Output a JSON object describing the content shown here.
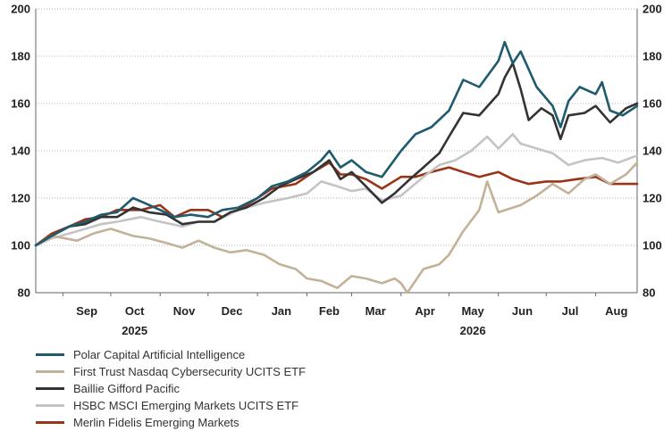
{
  "chart_data": {
    "type": "line",
    "title": "",
    "xlabel": "",
    "ylabel": "",
    "ylim": [
      80,
      200
    ],
    "yticks": [
      80,
      100,
      120,
      140,
      160,
      180,
      200
    ],
    "y_axes": "both sides",
    "grid": "horizontal dotted",
    "legend_placement": "bottom-left",
    "x_range": [
      "2025-08-15",
      "2026-08-27"
    ],
    "x_ticks": [
      {
        "date": "2025-09-01",
        "label": "Sep"
      },
      {
        "date": "2025-10-01",
        "label": "Oct"
      },
      {
        "date": "2025-11-01",
        "label": "Nov"
      },
      {
        "date": "2025-12-01",
        "label": "Dec"
      },
      {
        "date": "2026-01-01",
        "label": "Jan"
      },
      {
        "date": "2026-02-01",
        "label": "Feb"
      },
      {
        "date": "2026-03-01",
        "label": "Mar"
      },
      {
        "date": "2026-04-01",
        "label": "Apr"
      },
      {
        "date": "2026-05-01",
        "label": "May"
      },
      {
        "date": "2026-06-01",
        "label": "Jun"
      },
      {
        "date": "2026-07-01",
        "label": "Jul"
      },
      {
        "date": "2026-08-01",
        "label": "Aug"
      }
    ],
    "year_labels": [
      {
        "date": "2025-10-01",
        "label": "2025"
      },
      {
        "date": "2026-05-01",
        "label": "2026"
      }
    ],
    "series": [
      {
        "name": "Polar Capital Artificial Intelligence",
        "color": "#1e5b6e",
        "points": [
          [
            "2025-08-15",
            100
          ],
          [
            "2025-08-25",
            104
          ],
          [
            "2025-09-05",
            108
          ],
          [
            "2025-09-15",
            110
          ],
          [
            "2025-09-25",
            113
          ],
          [
            "2025-10-05",
            114
          ],
          [
            "2025-10-15",
            120
          ],
          [
            "2025-10-22",
            118
          ],
          [
            "2025-11-01",
            115
          ],
          [
            "2025-11-10",
            112
          ],
          [
            "2025-11-20",
            113
          ],
          [
            "2025-12-01",
            112
          ],
          [
            "2025-12-10",
            115
          ],
          [
            "2025-12-20",
            116
          ],
          [
            "2026-01-01",
            120
          ],
          [
            "2026-01-10",
            125
          ],
          [
            "2026-01-20",
            127
          ],
          [
            "2026-02-01",
            131
          ],
          [
            "2026-02-10",
            136
          ],
          [
            "2026-02-15",
            140
          ],
          [
            "2026-02-22",
            133
          ],
          [
            "2026-03-01",
            136
          ],
          [
            "2026-03-10",
            131
          ],
          [
            "2026-03-20",
            129
          ],
          [
            "2026-04-01",
            140
          ],
          [
            "2026-04-10",
            147
          ],
          [
            "2026-04-20",
            150
          ],
          [
            "2026-05-01",
            157
          ],
          [
            "2026-05-10",
            170
          ],
          [
            "2026-05-20",
            167
          ],
          [
            "2026-06-01",
            178
          ],
          [
            "2026-06-05",
            186
          ],
          [
            "2026-06-10",
            177
          ],
          [
            "2026-06-15",
            182
          ],
          [
            "2026-06-25",
            167
          ],
          [
            "2026-07-05",
            159
          ],
          [
            "2026-07-10",
            150
          ],
          [
            "2026-07-15",
            161
          ],
          [
            "2026-07-22",
            167
          ],
          [
            "2026-08-01",
            164
          ],
          [
            "2026-08-05",
            169
          ],
          [
            "2026-08-10",
            157
          ],
          [
            "2026-08-18",
            155
          ],
          [
            "2026-08-27",
            159
          ]
        ]
      },
      {
        "name": "First Trust Nasdaq Cybersecurity UCITS ETF",
        "color": "#c2b298",
        "points": [
          [
            "2025-08-15",
            100
          ],
          [
            "2025-08-25",
            104
          ],
          [
            "2025-09-10",
            102
          ],
          [
            "2025-09-20",
            105
          ],
          [
            "2025-10-01",
            107
          ],
          [
            "2025-10-15",
            104
          ],
          [
            "2025-10-25",
            103
          ],
          [
            "2025-11-05",
            101
          ],
          [
            "2025-11-15",
            99
          ],
          [
            "2025-11-25",
            102
          ],
          [
            "2025-12-05",
            99
          ],
          [
            "2025-12-15",
            97
          ],
          [
            "2025-12-25",
            98
          ],
          [
            "2026-01-05",
            96
          ],
          [
            "2026-01-15",
            92
          ],
          [
            "2026-01-25",
            90
          ],
          [
            "2026-02-01",
            86
          ],
          [
            "2026-02-10",
            85
          ],
          [
            "2026-02-20",
            82
          ],
          [
            "2026-03-01",
            87
          ],
          [
            "2026-03-10",
            86
          ],
          [
            "2026-03-20",
            84
          ],
          [
            "2026-03-28",
            86
          ],
          [
            "2026-04-01",
            84
          ],
          [
            "2026-04-05",
            80
          ],
          [
            "2026-04-15",
            90
          ],
          [
            "2026-04-25",
            92
          ],
          [
            "2026-05-01",
            96
          ],
          [
            "2026-05-10",
            106
          ],
          [
            "2026-05-20",
            115
          ],
          [
            "2026-05-25",
            127
          ],
          [
            "2026-06-01",
            114
          ],
          [
            "2026-06-15",
            117
          ],
          [
            "2026-06-25",
            121
          ],
          [
            "2026-07-05",
            126
          ],
          [
            "2026-07-15",
            122
          ],
          [
            "2026-07-25",
            128
          ],
          [
            "2026-08-01",
            130
          ],
          [
            "2026-08-10",
            126
          ],
          [
            "2026-08-20",
            130
          ],
          [
            "2026-08-27",
            135
          ]
        ]
      },
      {
        "name": "Baillie Gifford Pacific",
        "color": "#333333",
        "points": [
          [
            "2025-08-15",
            100
          ],
          [
            "2025-08-25",
            104
          ],
          [
            "2025-09-05",
            108
          ],
          [
            "2025-09-15",
            109
          ],
          [
            "2025-09-25",
            112
          ],
          [
            "2025-10-05",
            112
          ],
          [
            "2025-10-15",
            116
          ],
          [
            "2025-10-25",
            114
          ],
          [
            "2025-11-05",
            113
          ],
          [
            "2025-11-15",
            109
          ],
          [
            "2025-11-25",
            110
          ],
          [
            "2025-12-05",
            110
          ],
          [
            "2025-12-15",
            114
          ],
          [
            "2025-12-25",
            116
          ],
          [
            "2026-01-05",
            120
          ],
          [
            "2026-01-15",
            125
          ],
          [
            "2026-01-25",
            128
          ],
          [
            "2026-02-05",
            131
          ],
          [
            "2026-02-15",
            136
          ],
          [
            "2026-02-22",
            128
          ],
          [
            "2026-03-01",
            131
          ],
          [
            "2026-03-10",
            125
          ],
          [
            "2026-03-20",
            118
          ],
          [
            "2026-03-28",
            122
          ],
          [
            "2026-04-05",
            127
          ],
          [
            "2026-04-15",
            133
          ],
          [
            "2026-04-25",
            139
          ],
          [
            "2026-05-01",
            146
          ],
          [
            "2026-05-10",
            156
          ],
          [
            "2026-05-20",
            155
          ],
          [
            "2026-06-01",
            164
          ],
          [
            "2026-06-05",
            171
          ],
          [
            "2026-06-10",
            177
          ],
          [
            "2026-06-15",
            166
          ],
          [
            "2026-06-20",
            153
          ],
          [
            "2026-06-28",
            158
          ],
          [
            "2026-07-05",
            155
          ],
          [
            "2026-07-10",
            145
          ],
          [
            "2026-07-15",
            155
          ],
          [
            "2026-07-25",
            156
          ],
          [
            "2026-08-01",
            159
          ],
          [
            "2026-08-10",
            152
          ],
          [
            "2026-08-20",
            158
          ],
          [
            "2026-08-27",
            160
          ]
        ]
      },
      {
        "name": "HSBC MSCI Emerging Markets UCITS ETF",
        "color": "#c4c4c4",
        "points": [
          [
            "2025-08-15",
            100
          ],
          [
            "2025-08-25",
            103
          ],
          [
            "2025-09-10",
            106
          ],
          [
            "2025-09-25",
            109
          ],
          [
            "2025-10-05",
            110
          ],
          [
            "2025-10-20",
            112
          ],
          [
            "2025-11-01",
            110
          ],
          [
            "2025-11-15",
            108
          ],
          [
            "2025-11-25",
            110
          ],
          [
            "2025-12-05",
            110
          ],
          [
            "2025-12-20",
            115
          ],
          [
            "2026-01-05",
            118
          ],
          [
            "2026-01-20",
            120
          ],
          [
            "2026-02-01",
            122
          ],
          [
            "2026-02-10",
            127
          ],
          [
            "2026-02-20",
            125
          ],
          [
            "2026-03-01",
            123
          ],
          [
            "2026-03-10",
            124
          ],
          [
            "2026-03-20",
            119
          ],
          [
            "2026-04-01",
            121
          ],
          [
            "2026-04-15",
            129
          ],
          [
            "2026-04-25",
            134
          ],
          [
            "2026-05-05",
            136
          ],
          [
            "2026-05-15",
            140
          ],
          [
            "2026-05-25",
            146
          ],
          [
            "2026-06-01",
            141
          ],
          [
            "2026-06-10",
            147
          ],
          [
            "2026-06-15",
            143
          ],
          [
            "2026-06-25",
            141
          ],
          [
            "2026-07-05",
            139
          ],
          [
            "2026-07-15",
            134
          ],
          [
            "2026-07-25",
            136
          ],
          [
            "2026-08-05",
            137
          ],
          [
            "2026-08-15",
            135
          ],
          [
            "2026-08-27",
            138
          ]
        ]
      },
      {
        "name": "Merlin Fidelis Emerging Markets",
        "color": "#9a3418",
        "points": [
          [
            "2025-08-15",
            100
          ],
          [
            "2025-08-25",
            105
          ],
          [
            "2025-09-05",
            108
          ],
          [
            "2025-09-15",
            111
          ],
          [
            "2025-09-25",
            112
          ],
          [
            "2025-10-05",
            115
          ],
          [
            "2025-10-20",
            115
          ],
          [
            "2025-11-01",
            117
          ],
          [
            "2025-11-10",
            112
          ],
          [
            "2025-11-20",
            115
          ],
          [
            "2025-12-01",
            115
          ],
          [
            "2025-12-10",
            112
          ],
          [
            "2025-12-20",
            115
          ],
          [
            "2026-01-01",
            120
          ],
          [
            "2026-01-10",
            124
          ],
          [
            "2026-01-25",
            126
          ],
          [
            "2026-02-05",
            131
          ],
          [
            "2026-02-15",
            135
          ],
          [
            "2026-02-22",
            130
          ],
          [
            "2026-03-01",
            130
          ],
          [
            "2026-03-10",
            128
          ],
          [
            "2026-03-20",
            124
          ],
          [
            "2026-04-01",
            129
          ],
          [
            "2026-04-10",
            129
          ],
          [
            "2026-04-20",
            131
          ],
          [
            "2026-05-01",
            133
          ],
          [
            "2026-05-10",
            131
          ],
          [
            "2026-05-20",
            129
          ],
          [
            "2026-06-01",
            131
          ],
          [
            "2026-06-10",
            128
          ],
          [
            "2026-06-20",
            126
          ],
          [
            "2026-07-01",
            127
          ],
          [
            "2026-07-10",
            127
          ],
          [
            "2026-07-20",
            128
          ],
          [
            "2026-08-01",
            129
          ],
          [
            "2026-08-10",
            126
          ],
          [
            "2026-08-20",
            126
          ],
          [
            "2026-08-27",
            126
          ]
        ]
      }
    ]
  }
}
